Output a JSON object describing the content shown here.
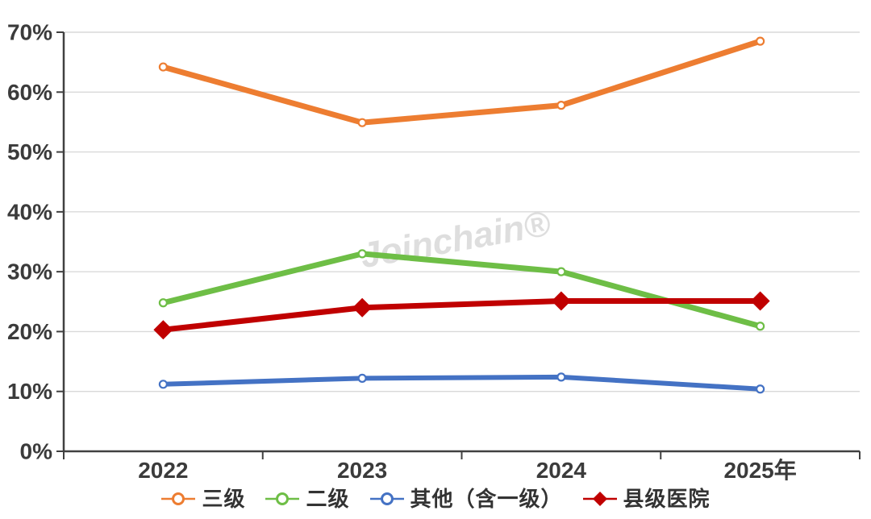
{
  "watermark": "Joinchain®",
  "colors": {
    "axis": "#404040",
    "grid": "#d9d9d9",
    "tick_label": "#3b3b3b",
    "legend_text": "#333333",
    "watermark": "#d9d9d9",
    "series_orange": "#ED7D31",
    "series_green": "#6EBE46",
    "series_blue": "#4472C4",
    "series_red": "#C00000"
  },
  "chart_data": {
    "type": "line",
    "title": "",
    "xlabel": "",
    "ylabel": "",
    "categories": [
      "2022",
      "2023",
      "2024",
      "2025年"
    ],
    "y_ticks": [
      "0%",
      "10%",
      "20%",
      "30%",
      "40%",
      "50%",
      "60%",
      "70%"
    ],
    "ylim": [
      0,
      70
    ],
    "grid": "horizontal-only",
    "legend_position": "bottom",
    "series": [
      {
        "name": "三级",
        "color": "#ED7D31",
        "marker": "circle",
        "line_width": 7,
        "values": [
          64.2,
          54.9,
          57.8,
          68.5
        ]
      },
      {
        "name": "二级",
        "color": "#6EBE46",
        "marker": "circle",
        "line_width": 7,
        "values": [
          24.8,
          33.0,
          30.0,
          20.9
        ]
      },
      {
        "name": "其他（含一级）",
        "color": "#4472C4",
        "marker": "circle",
        "line_width": 6,
        "values": [
          11.2,
          12.2,
          12.4,
          10.4
        ]
      },
      {
        "name": "县级医院",
        "color": "#C00000",
        "marker": "diamond",
        "line_width": 7,
        "values": [
          20.3,
          24.0,
          25.1,
          25.1
        ]
      }
    ]
  }
}
